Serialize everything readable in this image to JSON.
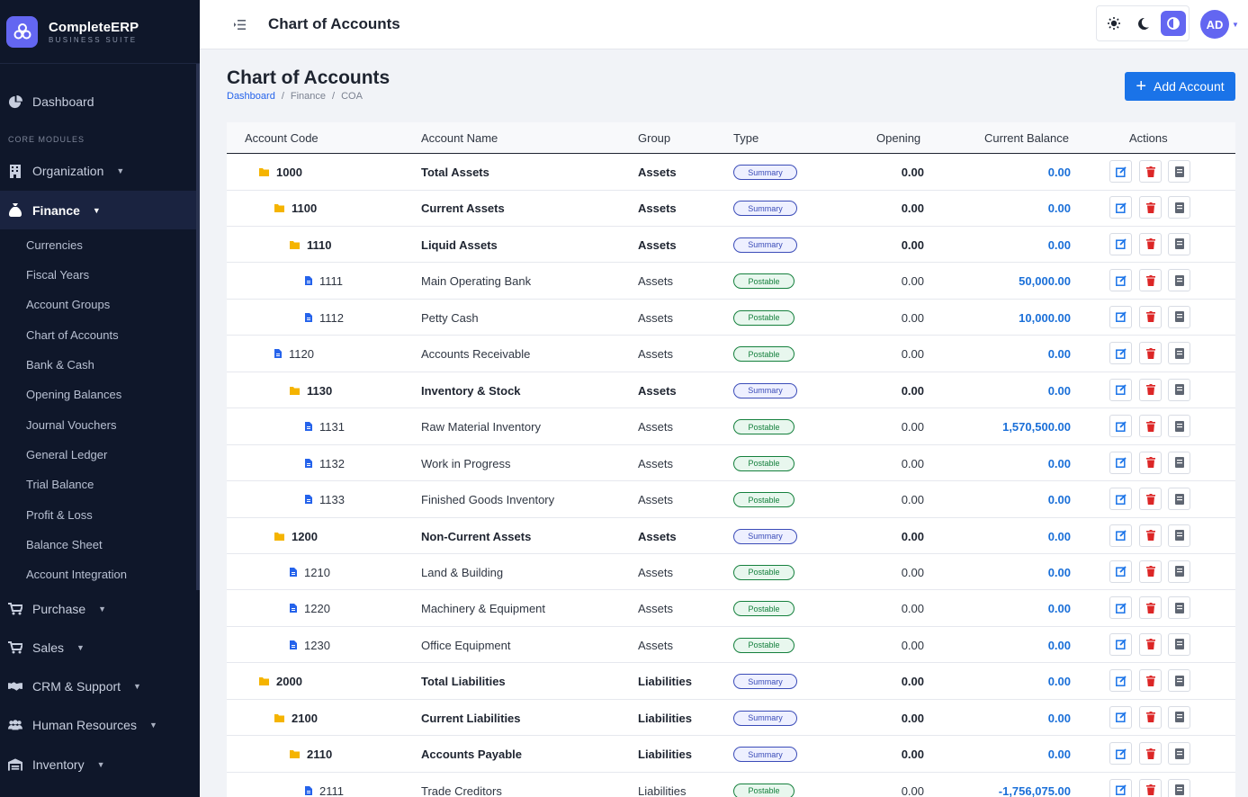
{
  "brand": {
    "name": "CompleteERP",
    "sub": "BUSINESS SUITE"
  },
  "sidebar": {
    "dashboard": "Dashboard",
    "heading": "CORE MODULES",
    "organization": "Organization",
    "finance": "Finance",
    "sub_items": [
      "Currencies",
      "Fiscal Years",
      "Account Groups",
      "Chart of Accounts",
      "Bank & Cash",
      "Opening Balances",
      "Journal Vouchers",
      "General Ledger",
      "Trial Balance",
      "Profit & Loss",
      "Balance Sheet",
      "Account Integration"
    ],
    "purchase": "Purchase",
    "sales": "Sales",
    "crm": "CRM & Support",
    "hr": "Human Resources",
    "inventory": "Inventory"
  },
  "topbar": {
    "title": "Chart of Accounts",
    "avatar": "AD"
  },
  "page": {
    "title": "Chart of Accounts",
    "breadcrumb": [
      "Dashboard",
      "Finance",
      "COA"
    ],
    "add_button": "Add Account"
  },
  "table": {
    "headers": [
      "Account Code",
      "Account Name",
      "Group",
      "Type",
      "Opening",
      "Current Balance",
      "Actions"
    ],
    "rows": [
      {
        "code": "1000",
        "name": "Total Assets",
        "group": "Assets",
        "type": "Summary",
        "opening": "0.00",
        "balance": "0.00"
      },
      {
        "code": "1100",
        "name": "Current Assets",
        "group": "Assets",
        "type": "Summary",
        "opening": "0.00",
        "balance": "0.00"
      },
      {
        "code": "1110",
        "name": "Liquid Assets",
        "group": "Assets",
        "type": "Summary",
        "opening": "0.00",
        "balance": "0.00"
      },
      {
        "code": "1111",
        "name": "Main Operating Bank",
        "group": "Assets",
        "type": "Postable",
        "opening": "0.00",
        "balance": "50,000.00"
      },
      {
        "code": "1112",
        "name": "Petty Cash",
        "group": "Assets",
        "type": "Postable",
        "opening": "0.00",
        "balance": "10,000.00"
      },
      {
        "code": "1120",
        "name": "Accounts Receivable",
        "group": "Assets",
        "type": "Postable",
        "opening": "0.00",
        "balance": "0.00"
      },
      {
        "code": "1130",
        "name": "Inventory & Stock",
        "group": "Assets",
        "type": "Summary",
        "opening": "0.00",
        "balance": "0.00"
      },
      {
        "code": "1131",
        "name": "Raw Material Inventory",
        "group": "Assets",
        "type": "Postable",
        "opening": "0.00",
        "balance": "1,570,500.00"
      },
      {
        "code": "1132",
        "name": "Work in Progress",
        "group": "Assets",
        "type": "Postable",
        "opening": "0.00",
        "balance": "0.00"
      },
      {
        "code": "1133",
        "name": "Finished Goods Inventory",
        "group": "Assets",
        "type": "Postable",
        "opening": "0.00",
        "balance": "0.00"
      },
      {
        "code": "1200",
        "name": "Non-Current Assets",
        "group": "Assets",
        "type": "Summary",
        "opening": "0.00",
        "balance": "0.00"
      },
      {
        "code": "1210",
        "name": "Land & Building",
        "group": "Assets",
        "type": "Postable",
        "opening": "0.00",
        "balance": "0.00"
      },
      {
        "code": "1220",
        "name": "Machinery & Equipment",
        "group": "Assets",
        "type": "Postable",
        "opening": "0.00",
        "balance": "0.00"
      },
      {
        "code": "1230",
        "name": "Office Equipment",
        "group": "Assets",
        "type": "Postable",
        "opening": "0.00",
        "balance": "0.00"
      },
      {
        "code": "2000",
        "name": "Total Liabilities",
        "group": "Liabilities",
        "type": "Summary",
        "opening": "0.00",
        "balance": "0.00"
      },
      {
        "code": "2100",
        "name": "Current Liabilities",
        "group": "Liabilities",
        "type": "Summary",
        "opening": "0.00",
        "balance": "0.00"
      },
      {
        "code": "2110",
        "name": "Accounts Payable",
        "group": "Liabilities",
        "type": "Summary",
        "opening": "0.00",
        "balance": "0.00"
      },
      {
        "code": "2111",
        "name": "Trade Creditors",
        "group": "Liabilities",
        "type": "Postable",
        "opening": "0.00",
        "balance": "-1,756,075.00"
      }
    ]
  },
  "colors": {
    "accent": "#6366f1",
    "sidebar": "#0f172a",
    "link": "#1a73e8",
    "summary": "#3b4cb8",
    "postable": "#15803d",
    "delete": "#dc2626"
  }
}
